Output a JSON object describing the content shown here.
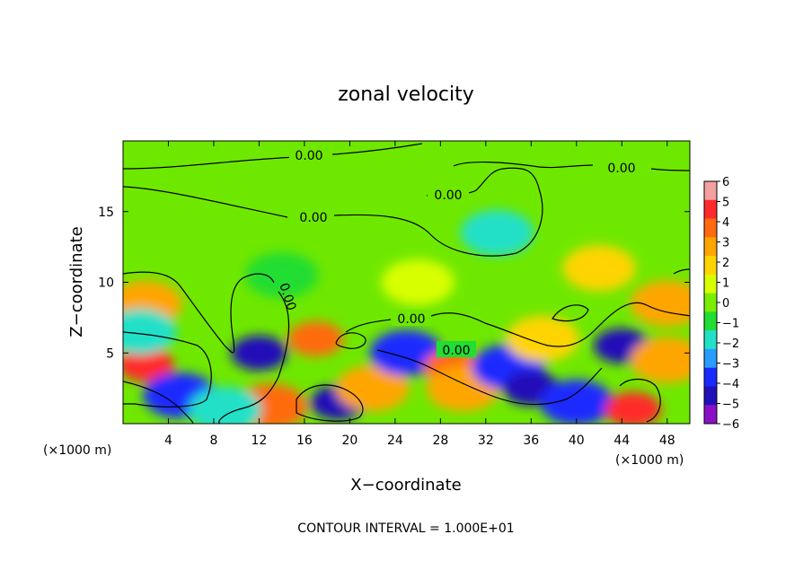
{
  "chart_data": {
    "type": "heatmap",
    "title": "zonal velocity",
    "xlabel": "X−coordinate",
    "ylabel": "Z−coordinate",
    "x_unit_left": "(×1000 m)",
    "x_unit_right": "(×1000 m)",
    "xlim": [
      0,
      50
    ],
    "ylim": [
      0,
      20
    ],
    "xticks": [
      4,
      8,
      12,
      16,
      20,
      24,
      28,
      32,
      36,
      40,
      44,
      48
    ],
    "yticks": [
      5,
      10,
      15
    ],
    "colorbar": {
      "ticks": [
        "6",
        "5",
        "4",
        "3",
        "2",
        "1",
        "0",
        "−1",
        "−2",
        "−3",
        "−4",
        "−5",
        "−6"
      ],
      "colors": [
        "#f4a0a0",
        "#ff2a2a",
        "#ff6a10",
        "#ffa500",
        "#ffd400",
        "#d8ff00",
        "#7bee00",
        "#22dd33",
        "#22e0c8",
        "#2a9cff",
        "#1a2aff",
        "#2010b8",
        "#8a10c8"
      ],
      "range": [
        -6,
        6
      ]
    },
    "contour_labels": [
      "0.00",
      "0.00",
      "0.00",
      "0.00",
      "0.00",
      "0.00",
      "0.00"
    ],
    "contour_interval_text": "CONTOUR INTERVAL = 1.000E+01",
    "features": [
      {
        "x": 2,
        "z": 8.5,
        "value": 3.5
      },
      {
        "x": 2,
        "z": 4.2,
        "value": 5.5
      },
      {
        "x": 1.5,
        "z": 6.5,
        "value": -2
      },
      {
        "x": 5,
        "z": 2,
        "value": -4
      },
      {
        "x": 12,
        "z": 5,
        "value": -4.5
      },
      {
        "x": 13,
        "z": 1.2,
        "value": 4
      },
      {
        "x": 17,
        "z": 6,
        "value": 4.5
      },
      {
        "x": 19,
        "z": 1.5,
        "value": -5
      },
      {
        "x": 22,
        "z": 2.5,
        "value": 3
      },
      {
        "x": 25,
        "z": 5,
        "value": -4
      },
      {
        "x": 29,
        "z": 4,
        "value": 4.5
      },
      {
        "x": 30,
        "z": 2.5,
        "value": 3
      },
      {
        "x": 34,
        "z": 4,
        "value": -3.5
      },
      {
        "x": 36,
        "z": 2.5,
        "value": -5
      },
      {
        "x": 37,
        "z": 6,
        "value": 2.5
      },
      {
        "x": 40,
        "z": 1.5,
        "value": -4
      },
      {
        "x": 44,
        "z": 5.5,
        "value": -4.5
      },
      {
        "x": 45,
        "z": 1,
        "value": 5
      },
      {
        "x": 48,
        "z": 8.5,
        "value": 3
      },
      {
        "x": 48,
        "z": 4.5,
        "value": 3
      },
      {
        "x": 9,
        "z": 1,
        "value": -2
      },
      {
        "x": 33,
        "z": 13.5,
        "value": -1.8
      },
      {
        "x": 42,
        "z": 11,
        "value": 2
      },
      {
        "x": 14,
        "z": 10.5,
        "value": -1
      },
      {
        "x": 26,
        "z": 10,
        "value": 1.5
      }
    ]
  }
}
